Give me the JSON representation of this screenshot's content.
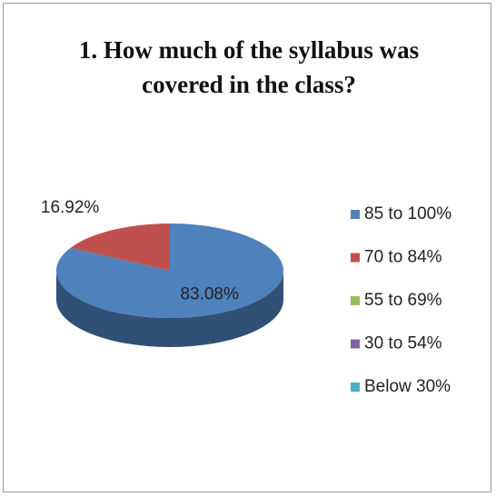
{
  "chart_data": {
    "type": "pie",
    "title": "1. How much of the syllabus was covered in the class?",
    "categories": [
      "85 to 100%",
      "70 to 84%",
      "55 to 69%",
      "30 to 54%",
      "Below 30%"
    ],
    "values": [
      83.08,
      16.92,
      0,
      0,
      0
    ],
    "value_labels": [
      "83.08%",
      "16.92%",
      null,
      null,
      null
    ],
    "colors": [
      "#4f81bd",
      "#c0504d",
      "#9bbb59",
      "#8064a2",
      "#4bacc6"
    ],
    "legend": "right"
  }
}
